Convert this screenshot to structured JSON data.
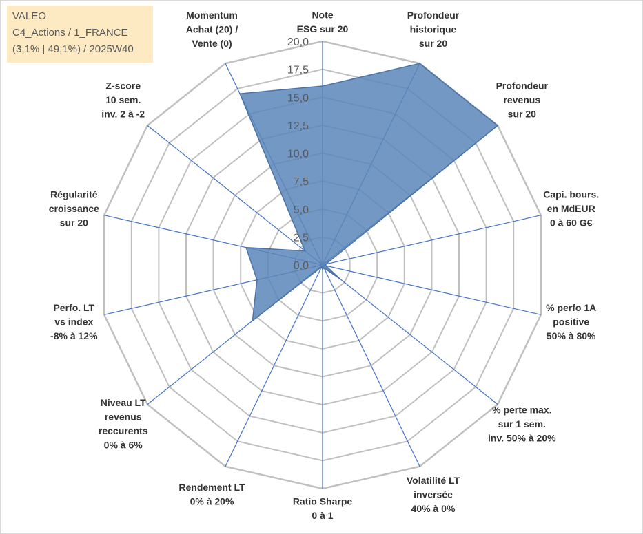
{
  "header": {
    "line1": "VALEO",
    "line2": "C4_Actions / 1_FRANCE",
    "line3": "(3,1% | 49,1%) / 2025W40"
  },
  "colors": {
    "grid": "#c0c0c0",
    "spoke": "#4472c4",
    "fill": "#5b86b8",
    "stroke": "#4a72a8"
  },
  "chart_data": {
    "type": "radar",
    "title": "",
    "r_min": 0,
    "r_max": 20,
    "ticks": [
      0,
      2.5,
      5,
      7.5,
      10,
      12.5,
      15,
      17.5,
      20
    ],
    "tick_labels": [
      "0,0",
      "2,5",
      "5,0",
      "7,5",
      "10,0",
      "12,5",
      "15,0",
      "17,5",
      "20,0"
    ],
    "axes": [
      {
        "lines": [
          "Note",
          "ESG sur 20"
        ]
      },
      {
        "lines": [
          "Profondeur",
          "historique",
          "sur 20"
        ]
      },
      {
        "lines": [
          "Profondeur",
          "revenus",
          "sur 20"
        ]
      },
      {
        "lines": [
          "Capi. bours.",
          "en MdEUR",
          "0 à 60 G€"
        ]
      },
      {
        "lines": [
          "% perfo 1A",
          "positive",
          "50% à 80%"
        ]
      },
      {
        "lines": [
          "% perte max.",
          "sur 1 sem.",
          "inv. 50% à 20%"
        ]
      },
      {
        "lines": [
          "Volatilité LT",
          "inversée",
          "40% à 0%"
        ]
      },
      {
        "lines": [
          "Ratio Sharpe",
          "0 à 1"
        ]
      },
      {
        "lines": [
          "Rendement LT",
          "0% à 20%"
        ]
      },
      {
        "lines": [
          "Niveau LT",
          "revenus",
          "reccurents",
          "0% à 6%"
        ]
      },
      {
        "lines": [
          "Perfo. LT",
          "vs index",
          "-8% à 12%"
        ]
      },
      {
        "lines": [
          "Régularité",
          "croissance",
          "sur 20"
        ]
      },
      {
        "lines": [
          "Z-score",
          "10 sem.",
          "inv. 2 à -2"
        ]
      },
      {
        "lines": [
          "Momentum",
          "Achat (20) /",
          "Vente (0)"
        ]
      }
    ],
    "values": [
      16.0,
      20.0,
      20.0,
      0.3,
      0.3,
      2.0,
      0.3,
      0.4,
      0.2,
      8.0,
      6.0,
      7.0,
      2.0,
      17.0
    ]
  }
}
